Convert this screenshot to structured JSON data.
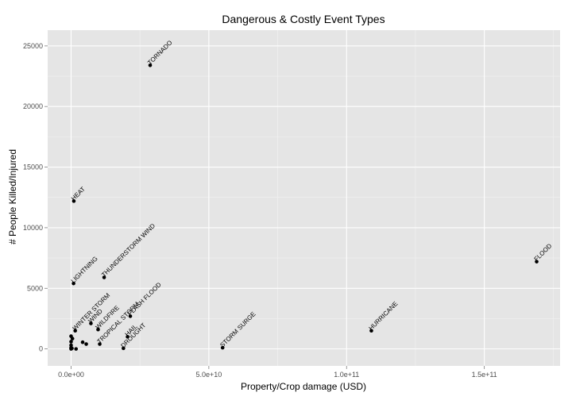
{
  "chart_data": {
    "type": "scatter",
    "title": "Dangerous & Costly Event Types",
    "xlabel": "Property/Crop damage (USD)",
    "ylabel": "# People Killed/Injured",
    "xlim": [
      -8500000000,
      177500000000
    ],
    "ylim": [
      -1400,
      26300
    ],
    "x_ticks": [
      0,
      50000000000,
      100000000000,
      150000000000
    ],
    "x_tick_labels": [
      "0.0e+00",
      "5.0e+10",
      "1.0e+11",
      "1.5e+11"
    ],
    "y_ticks": [
      0,
      5000,
      10000,
      15000,
      20000,
      25000
    ],
    "y_tick_labels": [
      "0",
      "5000",
      "10000",
      "15000",
      "20000",
      "25000"
    ],
    "grid": true,
    "legend": "none",
    "colors": {
      "panel_background": "#e5e5e5",
      "grid_major": "#ffffff",
      "grid_minor": "#f2f2f2",
      "point": "#000000"
    },
    "points": [
      {
        "label": "TORNADO",
        "x": 28700000000,
        "y": 23400
      },
      {
        "label": "HEAT",
        "x": 1000000000,
        "y": 12200
      },
      {
        "label": "LIGHTNING",
        "x": 900000000,
        "y": 5400
      },
      {
        "label": "THUNDERSTORM WIND",
        "x": 12000000000,
        "y": 5900
      },
      {
        "label": "WINTER STORM",
        "x": 1500000000,
        "y": 1500
      },
      {
        "label": "WIND",
        "x": 7200000000,
        "y": 2100
      },
      {
        "label": "WILDFIRE",
        "x": 9800000000,
        "y": 1600
      },
      {
        "label": "TROPICAL STORM",
        "x": 10400000000,
        "y": 400
      },
      {
        "label": "FLASH FLOOD",
        "x": 21500000000,
        "y": 2700
      },
      {
        "label": "HAIL",
        "x": 20500000000,
        "y": 1000
      },
      {
        "label": "DROUGHT",
        "x": 19000000000,
        "y": 50
      },
      {
        "label": "STORM SURGE",
        "x": 55000000000,
        "y": 100
      },
      {
        "label": "HURRICANE",
        "x": 109000000000,
        "y": 1500
      },
      {
        "label": "FLOOD",
        "x": 169000000000,
        "y": 7200
      },
      {
        "label": "",
        "x": 0,
        "y": 1050
      },
      {
        "label": "",
        "x": 0,
        "y": 600
      },
      {
        "label": "",
        "x": 0,
        "y": 300
      },
      {
        "label": "",
        "x": 0,
        "y": 100
      },
      {
        "label": "",
        "x": 0,
        "y": 0
      },
      {
        "label": "",
        "x": 500000000,
        "y": 850
      },
      {
        "label": "",
        "x": 300000000,
        "y": 50
      },
      {
        "label": "",
        "x": 1800000000,
        "y": 0
      },
      {
        "label": "",
        "x": 4200000000,
        "y": 550
      },
      {
        "label": "",
        "x": 5500000000,
        "y": 400
      }
    ]
  }
}
